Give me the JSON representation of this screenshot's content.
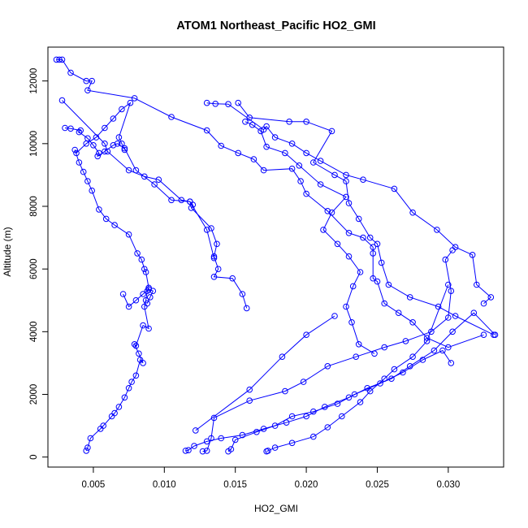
{
  "chart_data": {
    "type": "scatter",
    "title": "ATOM1 Northeast_Pacific HO2_GMI",
    "xlabel": "HO2_GMI",
    "ylabel": "Altitude (m)",
    "xlim": [
      0.0018,
      0.0339
    ],
    "ylim": [
      -320,
      13080
    ],
    "xticks": [
      0.005,
      0.01,
      0.015,
      0.02,
      0.025,
      0.03
    ],
    "xtick_labels": [
      "0.005",
      "0.010",
      "0.015",
      "0.020",
      "0.025",
      "0.030"
    ],
    "yticks": [
      0,
      2000,
      4000,
      6000,
      8000,
      10000,
      12000
    ],
    "ytick_labels": [
      "0",
      "2000",
      "4000",
      "6000",
      "8000",
      "10000",
      "12000"
    ],
    "grid": false,
    "legend": "none",
    "series_color": "#0000ff",
    "series": [
      {
        "values": [
          [
            0.0045,
            200
          ],
          [
            0.0046,
            300
          ],
          [
            0.0048,
            600
          ],
          [
            0.0055,
            900
          ],
          [
            0.0057,
            1000
          ],
          [
            0.0063,
            1300
          ],
          [
            0.0065,
            1400
          ],
          [
            0.0068,
            1600
          ],
          [
            0.0072,
            1900
          ],
          [
            0.0075,
            2200
          ],
          [
            0.0077,
            2400
          ],
          [
            0.008,
            2600
          ],
          [
            0.0083,
            3100
          ],
          [
            0.0085,
            3000
          ],
          [
            0.0082,
            3300
          ],
          [
            0.0079,
            3600
          ],
          [
            0.008,
            3550
          ],
          [
            0.0085,
            4200
          ],
          [
            0.0089,
            4100
          ],
          [
            0.0086,
            4800
          ],
          [
            0.0087,
            5000
          ],
          [
            0.0088,
            5300
          ],
          [
            0.0089,
            5400
          ],
          [
            0.0087,
            5900
          ],
          [
            0.0086,
            6000
          ],
          [
            0.0084,
            6300
          ],
          [
            0.0081,
            6500
          ],
          [
            0.0075,
            7100
          ],
          [
            0.0065,
            7400
          ],
          [
            0.0059,
            7600
          ],
          [
            0.0054,
            7900
          ],
          [
            0.0049,
            8500
          ],
          [
            0.0046,
            8800
          ],
          [
            0.0043,
            9100
          ],
          [
            0.004,
            9400
          ],
          [
            0.0037,
            9800
          ],
          [
            0.0038,
            9700
          ],
          [
            0.0045,
            10000
          ],
          [
            0.0052,
            10200
          ],
          [
            0.0058,
            10500
          ],
          [
            0.0064,
            10800
          ],
          [
            0.007,
            11100
          ],
          [
            0.0076,
            11300
          ],
          [
            0.0068,
            10200
          ],
          [
            0.007,
            10000
          ],
          [
            0.0072,
            9800
          ]
        ]
      },
      {
        "values": [
          [
            0.0024,
            12680
          ],
          [
            0.0026,
            12680
          ],
          [
            0.0028,
            12680
          ],
          [
            0.0034,
            12260
          ],
          [
            0.0045,
            12000
          ],
          [
            0.0049,
            12000
          ],
          [
            0.0046,
            11700
          ],
          [
            0.0079,
            11450
          ],
          [
            0.0105,
            10850
          ],
          [
            0.013,
            10420
          ],
          [
            0.014,
            9930
          ],
          [
            0.0152,
            9700
          ],
          [
            0.0163,
            9500
          ],
          [
            0.017,
            9150
          ],
          [
            0.019,
            9200
          ],
          [
            0.0196,
            8800
          ],
          [
            0.02,
            8400
          ],
          [
            0.0215,
            7850
          ],
          [
            0.023,
            7150
          ],
          [
            0.024,
            7000
          ],
          [
            0.0247,
            6700
          ],
          [
            0.0247,
            6500
          ],
          [
            0.0247,
            5700
          ],
          [
            0.025,
            5600
          ],
          [
            0.0255,
            4900
          ],
          [
            0.0265,
            4600
          ],
          [
            0.0275,
            4300
          ],
          [
            0.0285,
            3800
          ],
          [
            0.03,
            3500
          ],
          [
            0.0325,
            3900
          ]
        ]
      },
      {
        "values": [
          [
            0.0028,
            11380
          ],
          [
            0.0058,
            10000
          ],
          [
            0.006,
            9750
          ],
          [
            0.0075,
            9150
          ],
          [
            0.0086,
            8950
          ],
          [
            0.0096,
            8850
          ],
          [
            0.0112,
            8200
          ],
          [
            0.0118,
            8150
          ],
          [
            0.012,
            8050
          ],
          [
            0.0119,
            7950
          ],
          [
            0.0133,
            7300
          ],
          [
            0.0137,
            6800
          ],
          [
            0.0135,
            6400
          ],
          [
            0.0138,
            6000
          ],
          [
            0.0135,
            5750
          ],
          [
            0.0148,
            5700
          ],
          [
            0.0155,
            5200
          ],
          [
            0.0158,
            4750
          ]
        ]
      },
      {
        "values": [
          [
            0.003,
            10500
          ],
          [
            0.0034,
            10480
          ],
          [
            0.0041,
            10420
          ],
          [
            0.004,
            10370
          ],
          [
            0.0046,
            10170
          ],
          [
            0.005,
            9950
          ],
          [
            0.0054,
            9700
          ],
          [
            0.0053,
            9600
          ],
          [
            0.0058,
            9750
          ],
          [
            0.0064,
            9950
          ],
          [
            0.0067,
            10000
          ],
          [
            0.0072,
            9850
          ],
          [
            0.008,
            9150
          ],
          [
            0.0093,
            8700
          ],
          [
            0.0105,
            8200
          ],
          [
            0.0118,
            8150
          ],
          [
            0.013,
            7250
          ],
          [
            0.0135,
            6350
          ]
        ]
      },
      {
        "values": [
          [
            0.013,
            11300
          ],
          [
            0.0136,
            11270
          ],
          [
            0.0145,
            11260
          ],
          [
            0.017,
            10450
          ],
          [
            0.0172,
            10550
          ],
          [
            0.0178,
            10200
          ],
          [
            0.019,
            10000
          ],
          [
            0.02,
            9700
          ],
          [
            0.021,
            9450
          ],
          [
            0.0228,
            9000
          ],
          [
            0.024,
            8850
          ],
          [
            0.0262,
            8560
          ],
          [
            0.0275,
            7800
          ],
          [
            0.0292,
            7250
          ],
          [
            0.0305,
            6700
          ],
          [
            0.0317,
            6450
          ],
          [
            0.032,
            5500
          ],
          [
            0.033,
            5100
          ],
          [
            0.0325,
            4900
          ]
        ]
      },
      {
        "values": [
          [
            0.0152,
            11300
          ],
          [
            0.016,
            10830
          ],
          [
            0.0188,
            10700
          ],
          [
            0.02,
            10700
          ],
          [
            0.0218,
            10400
          ],
          [
            0.0205,
            9400
          ],
          [
            0.022,
            9000
          ],
          [
            0.0228,
            8800
          ],
          [
            0.023,
            8100
          ],
          [
            0.0237,
            7600
          ],
          [
            0.0245,
            7000
          ],
          [
            0.025,
            6800
          ],
          [
            0.0253,
            6200
          ],
          [
            0.0258,
            5500
          ],
          [
            0.0273,
            5100
          ],
          [
            0.0293,
            4800
          ],
          [
            0.0305,
            4500
          ],
          [
            0.0332,
            3900
          ]
        ]
      },
      {
        "values": [
          [
            0.0157,
            10700
          ],
          [
            0.0162,
            10600
          ],
          [
            0.0168,
            10400
          ],
          [
            0.0172,
            9900
          ],
          [
            0.0185,
            9700
          ],
          [
            0.0195,
            9300
          ],
          [
            0.021,
            8700
          ],
          [
            0.0228,
            8300
          ],
          [
            0.0218,
            7800
          ],
          [
            0.0212,
            7250
          ],
          [
            0.0222,
            6800
          ],
          [
            0.023,
            6400
          ],
          [
            0.0238,
            5900
          ],
          [
            0.0233,
            5450
          ],
          [
            0.0228,
            4800
          ],
          [
            0.0232,
            4300
          ],
          [
            0.0237,
            3600
          ],
          [
            0.0248,
            3300
          ]
        ]
      },
      {
        "values": [
          [
            0.0115,
            200
          ],
          [
            0.0117,
            220
          ],
          [
            0.0121,
            350
          ],
          [
            0.013,
            500
          ],
          [
            0.014,
            600
          ],
          [
            0.0155,
            700
          ],
          [
            0.017,
            900
          ],
          [
            0.0186,
            1100
          ],
          [
            0.02,
            1300
          ],
          [
            0.0213,
            1600
          ],
          [
            0.023,
            1900
          ],
          [
            0.0243,
            2200
          ],
          [
            0.026,
            2500
          ],
          [
            0.0273,
            2900
          ],
          [
            0.029,
            3400
          ],
          [
            0.0303,
            4000
          ],
          [
            0.0318,
            4600
          ],
          [
            0.0333,
            3900
          ]
        ]
      },
      {
        "values": [
          [
            0.0127,
            180
          ],
          [
            0.013,
            200
          ],
          [
            0.0133,
            600
          ],
          [
            0.0135,
            1250
          ],
          [
            0.016,
            1800
          ],
          [
            0.0185,
            2100
          ],
          [
            0.0198,
            2400
          ],
          [
            0.0215,
            2900
          ],
          [
            0.0235,
            3200
          ],
          [
            0.0255,
            3500
          ],
          [
            0.027,
            3700
          ],
          [
            0.0288,
            4000
          ],
          [
            0.03,
            4450
          ],
          [
            0.0302,
            5300
          ],
          [
            0.0298,
            6300
          ],
          [
            0.0303,
            6600
          ]
        ]
      },
      {
        "values": [
          [
            0.0145,
            180
          ],
          [
            0.0147,
            250
          ],
          [
            0.015,
            550
          ],
          [
            0.0165,
            800
          ],
          [
            0.0178,
            1000
          ],
          [
            0.019,
            1300
          ],
          [
            0.0205,
            1450
          ],
          [
            0.0222,
            1700
          ],
          [
            0.0234,
            2000
          ],
          [
            0.0252,
            2350
          ],
          [
            0.0268,
            2700
          ],
          [
            0.0282,
            3100
          ],
          [
            0.0296,
            3400
          ],
          [
            0.0302,
            3000
          ]
        ]
      },
      {
        "values": [
          [
            0.0172,
            180
          ],
          [
            0.0173,
            200
          ],
          [
            0.0178,
            300
          ],
          [
            0.019,
            450
          ],
          [
            0.0205,
            650
          ],
          [
            0.0215,
            950
          ],
          [
            0.0225,
            1300
          ],
          [
            0.0238,
            1750
          ],
          [
            0.0245,
            2100
          ],
          [
            0.0255,
            2500
          ],
          [
            0.0262,
            2800
          ],
          [
            0.0275,
            3200
          ],
          [
            0.0285,
            3700
          ],
          [
            0.03,
            5500
          ]
        ]
      },
      {
        "values": [
          [
            0.0122,
            850
          ],
          [
            0.016,
            2150
          ],
          [
            0.0183,
            3200
          ],
          [
            0.02,
            3900
          ],
          [
            0.022,
            4500
          ]
        ]
      },
      {
        "values": [
          [
            0.0088,
            4900
          ],
          [
            0.009,
            5100
          ],
          [
            0.0092,
            5300
          ],
          [
            0.0089,
            5350
          ],
          [
            0.0085,
            5200
          ],
          [
            0.008,
            5000
          ],
          [
            0.0075,
            4800
          ],
          [
            0.0071,
            5200
          ]
        ]
      }
    ]
  }
}
